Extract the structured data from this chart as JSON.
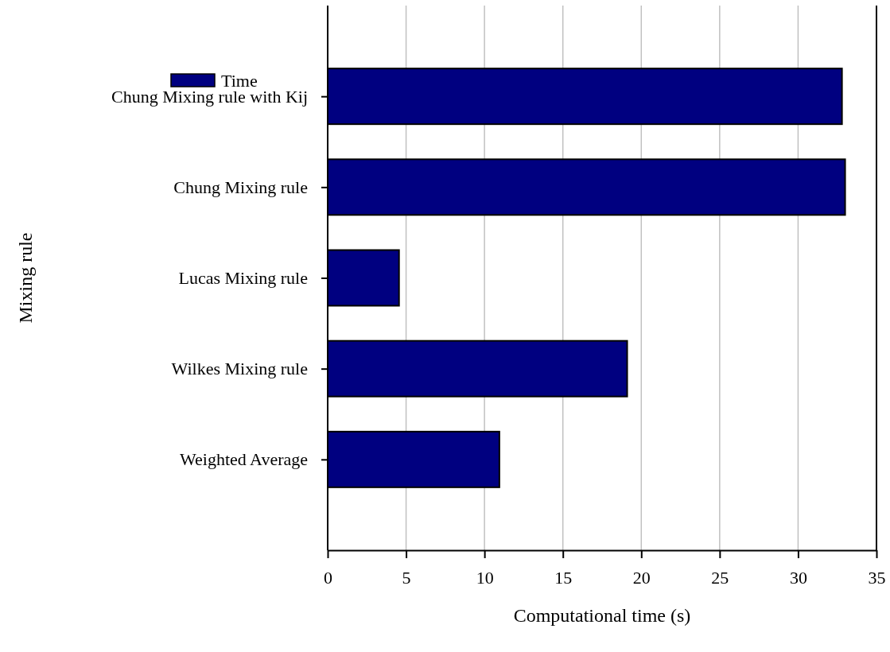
{
  "chart_data": {
    "type": "bar",
    "orientation": "horizontal",
    "xlabel": "Computational time (s)",
    "ylabel": "Mixing rule",
    "categories": [
      "Chung Mixing rule with Kij",
      "Chung Mixing rule",
      "Lucas Mixing rule",
      "Wilkes Mixing rule",
      "Weighted Average"
    ],
    "series": [
      {
        "name": "Time",
        "color": "#000080",
        "values": [
          32.8,
          33.0,
          4.55,
          19.1,
          10.95
        ]
      }
    ],
    "xlim": [
      0,
      35
    ],
    "xticks": [
      0,
      5,
      10,
      15,
      20,
      25,
      30,
      35
    ],
    "grid": "x",
    "legend": "top left"
  }
}
